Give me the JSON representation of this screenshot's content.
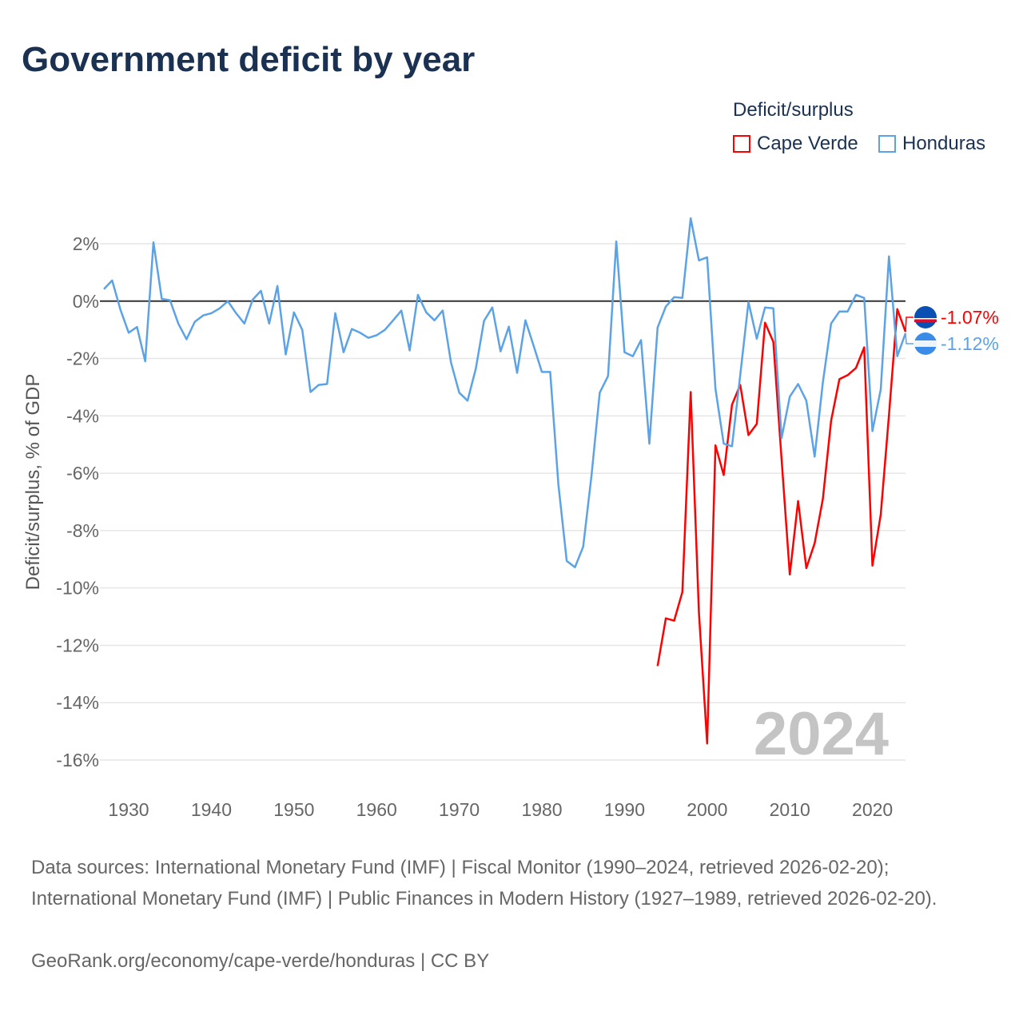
{
  "title": "Government deficit by year",
  "legend": {
    "title": "Deficit/surplus",
    "items": [
      {
        "name": "Cape Verde",
        "color": "#ff0000"
      },
      {
        "name": "Honduras",
        "color": "#5ba3e6"
      }
    ]
  },
  "chart_data": {
    "type": "line",
    "title": "Government deficit by year",
    "xlabel": "",
    "ylabel": "Deficit/surplus, % of GDP",
    "xlim": [
      1927,
      2024
    ],
    "ylim": [
      -16,
      2
    ],
    "yticks": [
      2,
      0,
      -2,
      -4,
      -6,
      -8,
      -10,
      -12,
      -14,
      -16
    ],
    "ytick_labels": [
      "2%",
      "0%",
      "-2%",
      "-4%",
      "-6%",
      "-8%",
      "-10%",
      "-12%",
      "-14%",
      "-16%"
    ],
    "xticks": [
      1930,
      1940,
      1950,
      1960,
      1970,
      1980,
      1990,
      2000,
      2010,
      2020
    ],
    "xtick_labels": [
      "1930",
      "1940",
      "1950",
      "1960",
      "1970",
      "1980",
      "1990",
      "2000",
      "2010",
      "2020"
    ],
    "grid": true,
    "watermark_year": "2024",
    "series": [
      {
        "name": "Cape Verde",
        "color": "#ff0000",
        "start_year": 1994,
        "end_label": "-1.07%",
        "values": [
          -12.72,
          -11.06,
          -11.14,
          -10.14,
          -3.17,
          -10.86,
          -15.42,
          -5.03,
          -6.06,
          -3.61,
          -2.92,
          -4.67,
          -4.28,
          -0.75,
          -1.42,
          -5.5,
          -9.53,
          -6.97,
          -9.31,
          -8.44,
          -6.89,
          -4.17,
          -2.72,
          -2.58,
          -2.33,
          -1.61,
          -9.22,
          -7.44,
          -3.97,
          -0.28,
          -1.07
        ]
      },
      {
        "name": "Honduras",
        "color": "#5ba3e6",
        "start_year": 1927,
        "end_label": "-1.12%",
        "values": [
          0.42,
          0.72,
          -0.3,
          -1.1,
          -0.9,
          -2.1,
          2.05,
          0.08,
          0.03,
          -0.78,
          -1.33,
          -0.72,
          -0.5,
          -0.42,
          -0.25,
          0,
          -0.42,
          -0.78,
          0.05,
          0.36,
          -0.78,
          0.53,
          -1.86,
          -0.39,
          -1.0,
          -3.17,
          -2.92,
          -2.89,
          -0.42,
          -1.78,
          -0.97,
          -1.1,
          -1.28,
          -1.19,
          -1.0,
          -0.67,
          -0.33,
          -1.72,
          0.22,
          -0.39,
          -0.67,
          -0.33,
          -2.14,
          -3.19,
          -3.47,
          -2.36,
          -0.69,
          -0.22,
          -1.75,
          -0.89,
          -2.5,
          -0.67,
          -1.56,
          -2.47,
          -2.47,
          -6.4,
          -9.06,
          -9.28,
          -8.56,
          -6.08,
          -3.19,
          -2.61,
          2.08,
          -1.78,
          -1.92,
          -1.36,
          -4.97,
          -0.92,
          -0.19,
          0.14,
          0.11,
          2.89,
          1.42,
          1.53,
          -3.06,
          -4.97,
          -5.06,
          -2.58,
          -0.03,
          -1.31,
          -0.22,
          -0.25,
          -4.78,
          -3.33,
          -2.89,
          -3.47,
          -5.42,
          -2.83,
          -0.78,
          -0.36,
          -0.36,
          0.22,
          0.11,
          -4.53,
          -3.08,
          1.56,
          -1.92,
          -1.12
        ]
      }
    ]
  },
  "footer": {
    "sources": "Data sources: International Monetary Fund (IMF) | Fiscal Monitor (1990–2024, retrieved 2026-02-20); International Monetary Fund (IMF) | Public Finances in Modern History (1927–1989, retrieved 2026-02-20).",
    "credit": "GeoRank.org/economy/cape-verde/honduras | CC BY"
  }
}
